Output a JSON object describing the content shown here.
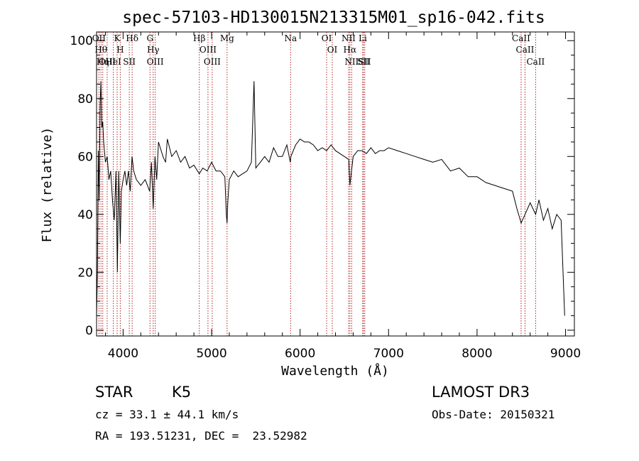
{
  "chart_data": {
    "type": "line",
    "title": "spec-57103-HD130015N213315M01_sp16-042.fits",
    "xlabel": "Wavelength (Å)",
    "ylabel": "Flux (relative)",
    "xlim": [
      3700,
      9100
    ],
    "ylim": [
      -2,
      103
    ],
    "xticks": [
      4000,
      5000,
      6000,
      7000,
      8000,
      9000
    ],
    "yticks": [
      0,
      20,
      40,
      60,
      80,
      100
    ],
    "grid": false,
    "line_color": "#000000",
    "marker_color": "#b22222",
    "series": [
      {
        "name": "flux",
        "x": [
          3700,
          3710,
          3720,
          3730,
          3740,
          3750,
          3760,
          3770,
          3780,
          3800,
          3820,
          3840,
          3860,
          3880,
          3900,
          3920,
          3935,
          3950,
          3968,
          3980,
          4000,
          4020,
          4040,
          4060,
          4080,
          4101,
          4120,
          4150,
          4200,
          4250,
          4300,
          4320,
          4340,
          4360,
          4380,
          4400,
          4430,
          4450,
          4480,
          4500,
          4550,
          4600,
          4650,
          4700,
          4750,
          4800,
          4861,
          4900,
          4950,
          5000,
          5050,
          5100,
          5150,
          5167,
          5175,
          5183,
          5200,
          5250,
          5300,
          5350,
          5400,
          5450,
          5480,
          5500,
          5550,
          5600,
          5650,
          5700,
          5750,
          5800,
          5850,
          5890,
          5896,
          5950,
          6000,
          6050,
          6100,
          6150,
          6200,
          6250,
          6300,
          6350,
          6400,
          6450,
          6500,
          6550,
          6563,
          6600,
          6650,
          6700,
          6750,
          6800,
          6850,
          6900,
          6950,
          7000,
          7100,
          7200,
          7300,
          7400,
          7500,
          7600,
          7700,
          7800,
          7900,
          8000,
          8100,
          8200,
          8300,
          8400,
          8450,
          8498,
          8542,
          8600,
          8662,
          8700,
          8750,
          8800,
          8850,
          8900,
          8950,
          8990
        ],
        "values": [
          5,
          20,
          62,
          45,
          78,
          86,
          70,
          72,
          65,
          58,
          60,
          52,
          55,
          45,
          38,
          55,
          20,
          55,
          30,
          48,
          52,
          55,
          50,
          55,
          48,
          60,
          55,
          52,
          50,
          52,
          48,
          58,
          42,
          60,
          52,
          65,
          62,
          60,
          58,
          66,
          60,
          62,
          58,
          60,
          56,
          57,
          54,
          56,
          55,
          58,
          55,
          55,
          53,
          40,
          37,
          44,
          52,
          55,
          53,
          54,
          55,
          58,
          86,
          56,
          58,
          60,
          58,
          63,
          60,
          60,
          64,
          58,
          60,
          64,
          66,
          65,
          65,
          64,
          62,
          63,
          62,
          64,
          62,
          61,
          60,
          59,
          50,
          60,
          62,
          62,
          61,
          63,
          61,
          62,
          62,
          63,
          62,
          61,
          60,
          59,
          58,
          59,
          55,
          56,
          53,
          53,
          51,
          50,
          49,
          48,
          42,
          37,
          40,
          44,
          40,
          45,
          38,
          42,
          35,
          40,
          38,
          5
        ]
      }
    ],
    "line_markers": [
      {
        "wavelength": 3727,
        "label": "OII"
      },
      {
        "wavelength": 3750,
        "label": "Hθ"
      },
      {
        "wavelength": 3770,
        "label": "Hη"
      },
      {
        "wavelength": 3820,
        "label": "OIII"
      },
      {
        "wavelength": 3889,
        "label": "HeI"
      },
      {
        "wavelength": 3933,
        "label": "K"
      },
      {
        "wavelength": 3968,
        "label": "H"
      },
      {
        "wavelength": 4070,
        "label": "SII"
      },
      {
        "wavelength": 4102,
        "label": "Hδ"
      },
      {
        "wavelength": 4304,
        "label": "G"
      },
      {
        "wavelength": 4340,
        "label": "Hγ"
      },
      {
        "wavelength": 4363,
        "label": "OIII"
      },
      {
        "wavelength": 4861,
        "label": "Hβ"
      },
      {
        "wavelength": 4959,
        "label": "OIII"
      },
      {
        "wavelength": 5007,
        "label": "OIII"
      },
      {
        "wavelength": 5175,
        "label": "Mg"
      },
      {
        "wavelength": 5893,
        "label": "Na"
      },
      {
        "wavelength": 6300,
        "label": "OI"
      },
      {
        "wavelength": 6364,
        "label": "OI"
      },
      {
        "wavelength": 6548,
        "label": "NII"
      },
      {
        "wavelength": 6563,
        "label": "Hα"
      },
      {
        "wavelength": 6583,
        "label": "NII"
      },
      {
        "wavelength": 6708,
        "label": "Li"
      },
      {
        "wavelength": 6716,
        "label": "SII"
      },
      {
        "wavelength": 6731,
        "label": "SII"
      },
      {
        "wavelength": 8498,
        "label": "CaII"
      },
      {
        "wavelength": 8542,
        "label": "CaII"
      },
      {
        "wavelength": 8662,
        "label": "CaII"
      }
    ]
  },
  "info": {
    "object_class": "STAR",
    "subclass": "K5",
    "survey": "LAMOST DR3",
    "redshift_line": "cz = 33.1 ± 44.1 km/s",
    "obs_date_line": "Obs-Date: 20150321",
    "coords_line": "RA = 193.51231, DEC =  23.52982"
  }
}
